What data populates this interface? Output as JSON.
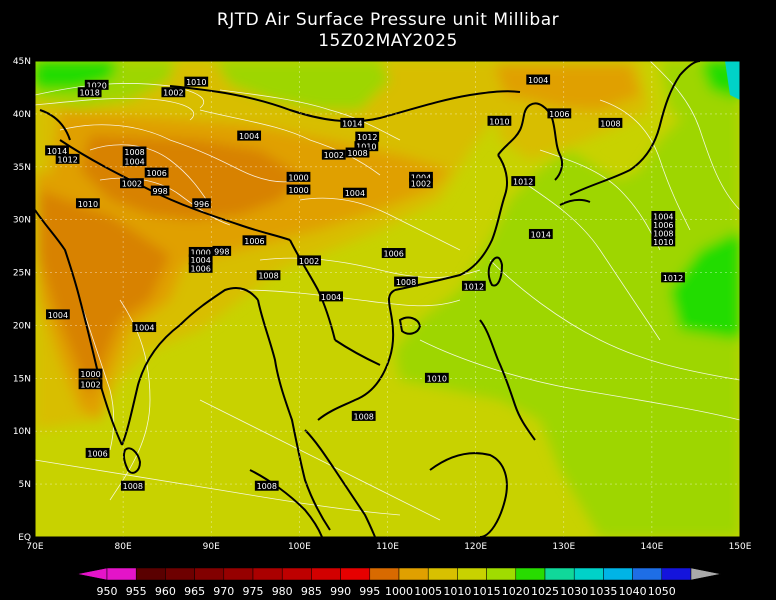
{
  "title": {
    "line1": "RJTD Air Surface Pressure unit Millibar",
    "line2": "15Z02MAY2025"
  },
  "axes": {
    "lon_labels": [
      "70E",
      "80E",
      "90E",
      "100E",
      "110E",
      "120E",
      "130E",
      "140E",
      "150E"
    ],
    "lat_labels": [
      "EQ",
      "5N",
      "10N",
      "15N",
      "20N",
      "25N",
      "30N",
      "35N",
      "40N",
      "45N"
    ]
  },
  "colorbar": {
    "labels": [
      "950",
      "955",
      "960",
      "965",
      "970",
      "975",
      "980",
      "985",
      "990",
      "995",
      "1000",
      "1005",
      "1010",
      "1015",
      "1020",
      "1025",
      "1030",
      "1035",
      "1040",
      "1050"
    ],
    "colors": [
      "#e414c8",
      "#5a0000",
      "#6e0000",
      "#820000",
      "#960000",
      "#aa0000",
      "#be0000",
      "#d20000",
      "#e60000",
      "#d86a00",
      "#e0a000",
      "#d8c000",
      "#c8d200",
      "#a0dc00",
      "#28dc00",
      "#10d89a",
      "#00d2c8",
      "#00b4e6",
      "#1e6ee6",
      "#1414dc"
    ],
    "left_arrow_color": "#e414c8",
    "right_arrow_color": "#aaaaaa"
  },
  "map_colors": {
    "orange": "#d88200",
    "light_orange": "#e0a000",
    "gold": "#d8be00",
    "yellow_green": "#c8d200",
    "green": "#9ed600",
    "bright_green": "#20dc00",
    "teal": "#00d2c8"
  },
  "isobar_labels": [
    {
      "t": "1020",
      "lon": 77.0,
      "lat": 42.7
    },
    {
      "t": "1010",
      "lon": 88.3,
      "lat": 43.0
    },
    {
      "t": "1002",
      "lon": 85.7,
      "lat": 42.0
    },
    {
      "t": "1018",
      "lon": 76.2,
      "lat": 42.0
    },
    {
      "t": "1014",
      "lon": 72.5,
      "lat": 36.5
    },
    {
      "t": "1012",
      "lon": 73.7,
      "lat": 35.7
    },
    {
      "t": "1008",
      "lon": 81.3,
      "lat": 36.4
    },
    {
      "t": "1004",
      "lon": 81.3,
      "lat": 35.5
    },
    {
      "t": "1006",
      "lon": 83.8,
      "lat": 34.4
    },
    {
      "t": "1002",
      "lon": 81.0,
      "lat": 33.4
    },
    {
      "t": "998",
      "lon": 84.2,
      "lat": 32.7
    },
    {
      "t": "1010",
      "lon": 76.0,
      "lat": 31.5
    },
    {
      "t": "996",
      "lon": 88.9,
      "lat": 31.5
    },
    {
      "t": "998",
      "lon": 91.2,
      "lat": 27.0
    },
    {
      "t": "1000",
      "lon": 88.8,
      "lat": 26.9
    },
    {
      "t": "1004",
      "lon": 88.8,
      "lat": 26.2
    },
    {
      "t": "1006",
      "lon": 88.8,
      "lat": 25.4
    },
    {
      "t": "1004",
      "lon": 94.3,
      "lat": 37.9
    },
    {
      "t": "1006",
      "lon": 94.9,
      "lat": 28.0
    },
    {
      "t": "1000",
      "lon": 99.9,
      "lat": 34.0
    },
    {
      "t": "1000",
      "lon": 99.9,
      "lat": 32.8
    },
    {
      "t": "1008",
      "lon": 96.5,
      "lat": 24.7
    },
    {
      "t": "1002",
      "lon": 101.1,
      "lat": 26.1
    },
    {
      "t": "1004",
      "lon": 103.6,
      "lat": 22.7
    },
    {
      "t": "1014",
      "lon": 106.0,
      "lat": 39.1
    },
    {
      "t": "1012",
      "lon": 107.7,
      "lat": 37.8
    },
    {
      "t": "1010",
      "lon": 107.6,
      "lat": 36.9
    },
    {
      "t": "1008",
      "lon": 106.6,
      "lat": 36.3
    },
    {
      "t": "1002",
      "lon": 103.9,
      "lat": 36.1
    },
    {
      "t": "1004",
      "lon": 106.3,
      "lat": 32.5
    },
    {
      "t": "1004",
      "lon": 113.8,
      "lat": 34.0
    },
    {
      "t": "1002",
      "lon": 113.8,
      "lat": 33.4
    },
    {
      "t": "1006",
      "lon": 110.7,
      "lat": 26.8
    },
    {
      "t": "1008",
      "lon": 112.1,
      "lat": 24.1
    },
    {
      "t": "1012",
      "lon": 119.8,
      "lat": 23.7
    },
    {
      "t": "1004",
      "lon": 127.1,
      "lat": 43.2
    },
    {
      "t": "1010",
      "lon": 122.7,
      "lat": 39.3
    },
    {
      "t": "1006",
      "lon": 129.5,
      "lat": 40.0
    },
    {
      "t": "1008",
      "lon": 135.3,
      "lat": 39.1
    },
    {
      "t": "1012",
      "lon": 125.4,
      "lat": 33.6
    },
    {
      "t": "1014",
      "lon": 127.4,
      "lat": 28.6
    },
    {
      "t": "1004",
      "lon": 141.3,
      "lat": 30.3
    },
    {
      "t": "1006",
      "lon": 141.3,
      "lat": 29.5
    },
    {
      "t": "1008",
      "lon": 141.3,
      "lat": 28.7
    },
    {
      "t": "1010",
      "lon": 141.3,
      "lat": 27.9
    },
    {
      "t": "1012",
      "lon": 142.4,
      "lat": 24.5
    },
    {
      "t": "1004",
      "lon": 72.6,
      "lat": 21.0
    },
    {
      "t": "1004",
      "lon": 82.4,
      "lat": 19.8
    },
    {
      "t": "1000",
      "lon": 76.3,
      "lat": 15.4
    },
    {
      "t": "1002",
      "lon": 76.3,
      "lat": 14.4
    },
    {
      "t": "1010",
      "lon": 115.6,
      "lat": 15.0
    },
    {
      "t": "1008",
      "lon": 107.3,
      "lat": 11.4
    },
    {
      "t": "1006",
      "lon": 77.1,
      "lat": 7.9
    },
    {
      "t": "1008",
      "lon": 81.1,
      "lat": 4.8
    },
    {
      "t": "1008",
      "lon": 96.3,
      "lat": 4.8
    }
  ]
}
